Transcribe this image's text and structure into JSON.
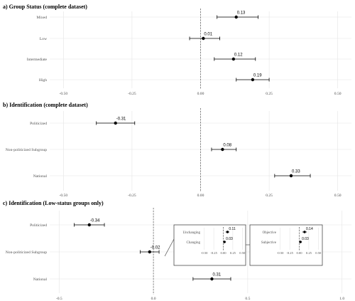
{
  "chart_data": [
    {
      "type": "scatter",
      "title": "a) Group Status (complete dataset)",
      "categories": [
        "Mixed",
        "Low",
        "Intermediate",
        "High"
      ],
      "estimates": [
        0.13,
        0.01,
        0.12,
        0.19
      ],
      "lower": [
        0.06,
        -0.04,
        0.05,
        0.13
      ],
      "upper": [
        0.21,
        0.07,
        0.2,
        0.25
      ],
      "labels": [
        "0.13",
        "0.01",
        "0.12",
        "0.19"
      ],
      "xlim": [
        -0.55,
        0.55
      ],
      "xticks": [
        -0.5,
        -0.25,
        0.0,
        0.25,
        0.5
      ],
      "xtick_labels": [
        "-0.50",
        "-0.25",
        "0.00",
        "0.25",
        "0.50"
      ],
      "reference_line": 0
    },
    {
      "type": "scatter",
      "title": "b) Identification (complete dataset)",
      "categories": [
        "Politicized",
        "Non-politicized Subgroup",
        "National"
      ],
      "estimates": [
        -0.31,
        0.08,
        0.33
      ],
      "lower": [
        -0.38,
        0.04,
        0.27
      ],
      "upper": [
        -0.24,
        0.13,
        0.4
      ],
      "labels": [
        "-0.31",
        "0.08",
        "0.33"
      ],
      "xlim": [
        -0.55,
        0.55
      ],
      "xticks": [
        -0.5,
        -0.25,
        0.0,
        0.25,
        0.5
      ],
      "xtick_labels": [
        "-0.50",
        "-0.25",
        "0.00",
        "0.25",
        "0.50"
      ],
      "reference_line": 0
    },
    {
      "type": "scatter",
      "title": "c) Identification (Low-status groups only)",
      "categories": [
        "Politicized",
        "Non-politicized Subgroup",
        "National"
      ],
      "estimates": [
        -0.34,
        -0.02,
        0.31
      ],
      "lower": [
        -0.42,
        -0.07,
        0.21
      ],
      "upper": [
        -0.26,
        0.03,
        0.41
      ],
      "labels": [
        "-0.34",
        "-0.02",
        "0.31"
      ],
      "xlim": [
        -0.55,
        1.05
      ],
      "xticks": [
        -0.5,
        0.0,
        0.5,
        1.0
      ],
      "xtick_labels": [
        "-0.5",
        "0.0",
        "0.5",
        "1.0"
      ],
      "reference_line": 0,
      "insets": [
        {
          "categories": [
            "Unchanging",
            "Changing"
          ],
          "estimates": [
            0.11,
            0.03
          ],
          "lower": [
            0.06,
            0.0
          ],
          "upper": [
            0.16,
            0.07
          ],
          "labels": [
            "0.11",
            "0.03"
          ],
          "xlim": [
            -0.55,
            0.55
          ],
          "xticks": [
            -0.5,
            -0.25,
            0.0,
            0.25,
            0.5
          ],
          "xtick_labels": [
            "-0.50",
            "-0.25",
            "0.00",
            "0.25",
            "0.50"
          ]
        },
        {
          "categories": [
            "Objective",
            "Subjective"
          ],
          "estimates": [
            0.14,
            0.03
          ],
          "lower": [
            0.08,
            0.0
          ],
          "upper": [
            0.2,
            0.07
          ],
          "labels": [
            "0.14",
            "0.03"
          ],
          "xlim": [
            -0.55,
            0.55
          ],
          "xticks": [
            -0.5,
            -0.25,
            0.0,
            0.25,
            0.5
          ],
          "xtick_labels": [
            "-0.50",
            "-0.25",
            "0.00",
            "0.25",
            "0.50"
          ]
        }
      ]
    }
  ]
}
